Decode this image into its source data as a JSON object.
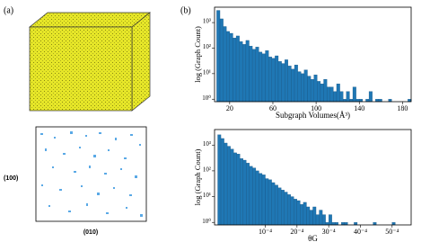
{
  "panel_a": {
    "label": "(a)",
    "row_label": "(100)",
    "col_label": "(010)"
  },
  "panel_b_label": "(b)",
  "chart_data": [
    {
      "type": "histogram",
      "x_label": "Subgraph Volumes(Å³)",
      "y_label": "log (Graph Count)",
      "color": "#1f77b4",
      "log_y": true,
      "bins": [
        8,
        11,
        14,
        17,
        20,
        23,
        26,
        29,
        32,
        35,
        38,
        41,
        44,
        47,
        50,
        53,
        56,
        59,
        62,
        65,
        68,
        71,
        74,
        77,
        80,
        83,
        86,
        89,
        92,
        95,
        98,
        101,
        104,
        107,
        110,
        113,
        116,
        119,
        122,
        125,
        128,
        131,
        134,
        137,
        140,
        143,
        146,
        149,
        152,
        155,
        158,
        161,
        164,
        167,
        170,
        173,
        176,
        179,
        182,
        185,
        188
      ],
      "values": [
        3000,
        1400,
        700,
        450,
        380,
        250,
        300,
        180,
        140,
        200,
        120,
        90,
        110,
        70,
        60,
        80,
        45,
        40,
        50,
        30,
        25,
        35,
        20,
        15,
        22,
        12,
        10,
        14,
        8,
        6,
        9,
        5,
        4,
        6,
        3,
        3,
        2,
        4,
        2,
        1,
        2,
        1,
        3,
        1,
        1,
        0,
        1,
        2,
        0,
        1,
        1,
        0,
        0,
        1,
        0,
        0,
        0,
        0,
        0,
        1
      ],
      "xlim": [
        6,
        188
      ],
      "xticks": [
        20,
        60,
        100,
        140,
        180
      ],
      "ylim": [
        0.8,
        4000
      ],
      "yticks": [
        {
          "value": 1,
          "label": "10⁰"
        },
        {
          "value": 10,
          "label": "10¹"
        },
        {
          "value": 100,
          "label": "10²"
        },
        {
          "value": 1000,
          "label": "10³"
        }
      ]
    },
    {
      "type": "histogram",
      "x_label": "θG",
      "y_label": "log (Graph Count)",
      "color": "#1f77b4",
      "log_y": true,
      "bins": [
        -5,
        -4,
        -3,
        -2,
        -1,
        0,
        1,
        2,
        3,
        4,
        5,
        6,
        7,
        8,
        9,
        10,
        11,
        12,
        13,
        14,
        15,
        16,
        17,
        18,
        19,
        20,
        21,
        22,
        23,
        24,
        25,
        26,
        27,
        28,
        29,
        30,
        31,
        32,
        33,
        34,
        35,
        36,
        37,
        38,
        39,
        40,
        41,
        42,
        43,
        44,
        45,
        46,
        47,
        48,
        49,
        50,
        51,
        52
      ],
      "values": [
        2500,
        1800,
        1200,
        900,
        700,
        500,
        450,
        300,
        260,
        200,
        150,
        130,
        100,
        80,
        70,
        50,
        45,
        35,
        28,
        22,
        18,
        15,
        12,
        10,
        8,
        7,
        5,
        6,
        4,
        3,
        4,
        2,
        3,
        2,
        1,
        2,
        1,
        1,
        0,
        1,
        1,
        0,
        0,
        1,
        0,
        0,
        0,
        0,
        0,
        1,
        0,
        0,
        0,
        0,
        0,
        1,
        0
      ],
      "xlim": [
        -6,
        56
      ],
      "xticks": [
        {
          "value": 10,
          "label": "10⁻⁴"
        },
        {
          "value": 20,
          "label": "20⁻⁴"
        },
        {
          "value": 30,
          "label": "30⁻⁴"
        },
        {
          "value": 40,
          "label": "40⁻⁴"
        },
        {
          "value": 50,
          "label": "50⁻⁴"
        }
      ],
      "ylim": [
        0.8,
        4000
      ],
      "yticks": [
        {
          "value": 1,
          "label": "10⁰"
        },
        {
          "value": 10,
          "label": "10¹"
        },
        {
          "value": 100,
          "label": "10²"
        },
        {
          "value": 1000,
          "label": "10³"
        }
      ]
    }
  ]
}
